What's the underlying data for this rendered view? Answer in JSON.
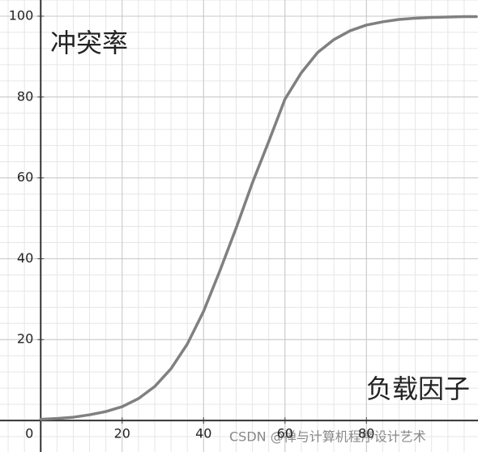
{
  "chart_data": {
    "type": "line",
    "x_label": "负载因子",
    "y_label": "冲突率",
    "annotation": "CSDN @禅与计算机程序设计艺术",
    "x": [
      0,
      4,
      8,
      12,
      16,
      20,
      24,
      28,
      32,
      36,
      40,
      44,
      48,
      52,
      56,
      60,
      64,
      68,
      72,
      76,
      80,
      84,
      88,
      92,
      96,
      100,
      104,
      107
    ],
    "series": [
      {
        "name": "冲突率",
        "color": "#808080",
        "values": [
          0.3,
          0.5,
          0.8,
          1.4,
          2.2,
          3.4,
          5.4,
          8.4,
          12.8,
          18.9,
          27.0,
          37.0,
          47.6,
          58.8,
          69.0,
          79.5,
          86.0,
          91.0,
          94.2,
          96.4,
          97.8,
          98.6,
          99.2,
          99.5,
          99.7,
          99.8,
          99.9,
          99.9
        ]
      }
    ],
    "xlim": [
      -10,
      107.4
    ],
    "ylim": [
      -7.8,
      104
    ],
    "xticks": [
      0,
      20,
      40,
      60,
      80
    ],
    "yticks": [
      20,
      40,
      60,
      80,
      100
    ],
    "grid": true,
    "minor_grid": true
  }
}
